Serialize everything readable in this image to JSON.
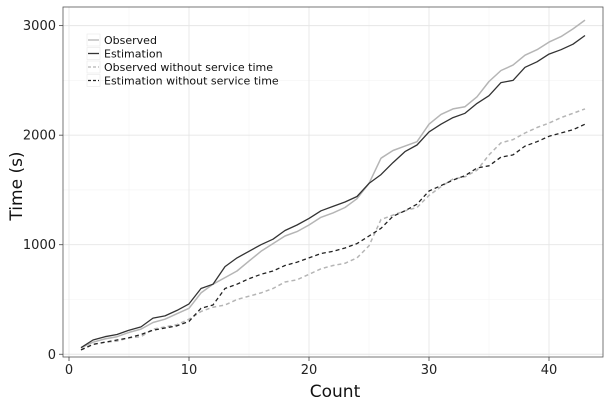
{
  "chart_data": {
    "type": "line",
    "title": "",
    "xlabel": "Count",
    "ylabel": "Time (s)",
    "xlim": [
      -0.5,
      44.5
    ],
    "ylim": [
      -25,
      3170
    ],
    "x_ticks": [
      0,
      10,
      20,
      30,
      40
    ],
    "y_ticks": [
      0,
      1000,
      2000,
      3000
    ],
    "x_tick_labels": [
      "0",
      "10",
      "20",
      "30",
      "40"
    ],
    "y_tick_labels": [
      "0",
      "1000",
      "2000",
      "3000"
    ],
    "grid": true,
    "legend_position": "top-left",
    "x": [
      1,
      2,
      3,
      4,
      5,
      6,
      7,
      8,
      9,
      10,
      11,
      12,
      13,
      14,
      15,
      16,
      17,
      18,
      19,
      20,
      21,
      22,
      23,
      24,
      25,
      26,
      27,
      28,
      29,
      30,
      31,
      32,
      33,
      34,
      35,
      36,
      37,
      38,
      39,
      40,
      41,
      42,
      43
    ],
    "series": [
      {
        "name": "Observed",
        "color": "#b5b5b5",
        "dash": "solid",
        "values": [
          60,
          110,
          140,
          160,
          200,
          230,
          290,
          320,
          370,
          420,
          560,
          640,
          700,
          760,
          850,
          940,
          1010,
          1080,
          1120,
          1180,
          1250,
          1290,
          1340,
          1420,
          1560,
          1790,
          1860,
          1900,
          1940,
          2100,
          2190,
          2240,
          2260,
          2350,
          2490,
          2590,
          2640,
          2730,
          2780,
          2850,
          2900,
          2970,
          3050
        ]
      },
      {
        "name": "Estimation",
        "color": "#333333",
        "dash": "solid",
        "values": [
          60,
          130,
          160,
          180,
          220,
          250,
          330,
          350,
          400,
          460,
          600,
          640,
          800,
          880,
          940,
          1000,
          1050,
          1130,
          1180,
          1240,
          1310,
          1350,
          1390,
          1440,
          1560,
          1640,
          1750,
          1850,
          1910,
          2030,
          2100,
          2160,
          2200,
          2290,
          2360,
          2480,
          2500,
          2620,
          2670,
          2740,
          2780,
          2830,
          2910
        ]
      },
      {
        "name": "Observed without service time",
        "color": "#b5b5b5",
        "dash": "dashed",
        "values": [
          40,
          90,
          110,
          120,
          150,
          160,
          230,
          250,
          270,
          320,
          390,
          430,
          450,
          500,
          530,
          560,
          600,
          660,
          680,
          730,
          780,
          810,
          830,
          880,
          990,
          1230,
          1270,
          1310,
          1340,
          1450,
          1530,
          1600,
          1620,
          1680,
          1820,
          1930,
          1960,
          2020,
          2070,
          2110,
          2160,
          2200,
          2240
        ]
      },
      {
        "name": "Estimation without service time",
        "color": "#222222",
        "dash": "dashed",
        "values": [
          40,
          90,
          110,
          130,
          150,
          180,
          220,
          240,
          260,
          300,
          420,
          450,
          600,
          640,
          690,
          730,
          760,
          810,
          840,
          880,
          920,
          940,
          970,
          1010,
          1080,
          1150,
          1260,
          1310,
          1370,
          1490,
          1540,
          1590,
          1630,
          1700,
          1720,
          1800,
          1820,
          1900,
          1940,
          1990,
          2020,
          2050,
          2100
        ]
      }
    ]
  }
}
